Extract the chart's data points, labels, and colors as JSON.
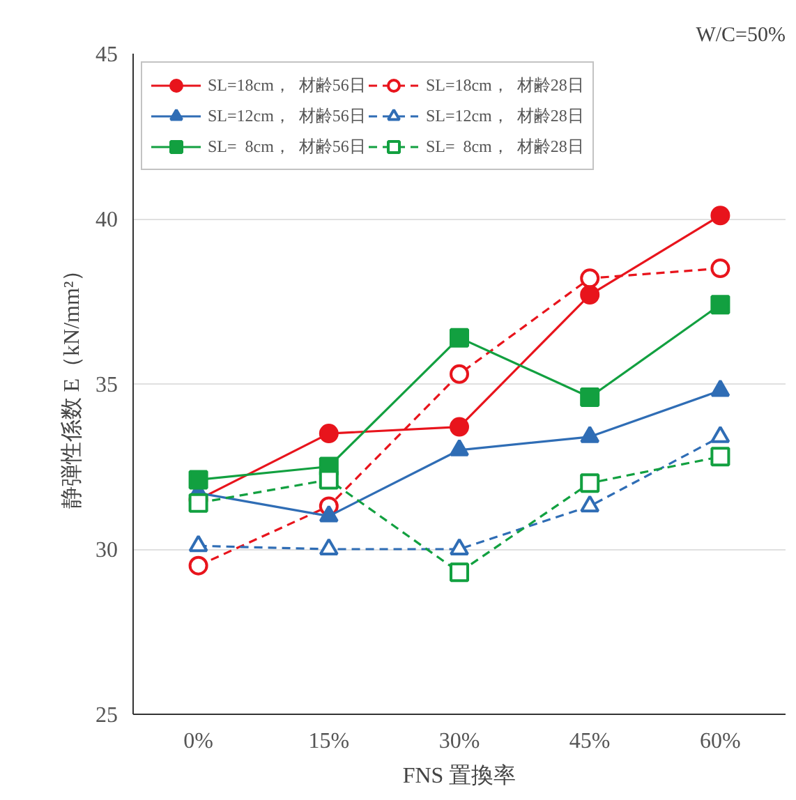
{
  "chart_data": {
    "type": "line",
    "title": "W/C=50%",
    "xlabel": "FNS 置換率",
    "ylabel": "静弾性係数 E（kN/mm²）",
    "categories": [
      "0%",
      "15%",
      "30%",
      "45%",
      "60%"
    ],
    "ylim": [
      25,
      45
    ],
    "yticks": [
      25,
      30,
      35,
      40,
      45
    ],
    "grid": "y",
    "legend": "top left",
    "series": [
      {
        "name": "SL=18cm，  材齢56日",
        "color": "#e8141c",
        "marker": "circle",
        "line_style": "solid",
        "values": [
          31.5,
          33.5,
          33.7,
          37.7,
          40.1
        ]
      },
      {
        "name": "SL=18cm，  材齢28日",
        "color": "#e8141c",
        "marker": "circle",
        "line_style": "dashed",
        "values": [
          29.5,
          31.3,
          35.3,
          38.2,
          38.5
        ]
      },
      {
        "name": "SL=12cm，  材齢56日",
        "color": "#2f6db5",
        "marker": "triangle",
        "line_style": "solid",
        "values": [
          31.7,
          31.0,
          33.0,
          33.4,
          34.8
        ]
      },
      {
        "name": "SL=12cm，  材齢28日",
        "color": "#2f6db5",
        "marker": "triangle",
        "line_style": "dashed",
        "values": [
          30.1,
          30.0,
          30.0,
          31.3,
          33.4
        ]
      },
      {
        "name": "SL=  8cm，  材齢56日",
        "color": "#12a040",
        "marker": "square",
        "line_style": "solid",
        "values": [
          32.1,
          32.5,
          36.4,
          34.6,
          37.4
        ]
      },
      {
        "name": "SL=  8cm，  材齢28日",
        "color": "#12a040",
        "marker": "square",
        "line_style": "dashed",
        "values": [
          31.4,
          32.1,
          29.3,
          32.0,
          32.8
        ]
      }
    ]
  }
}
